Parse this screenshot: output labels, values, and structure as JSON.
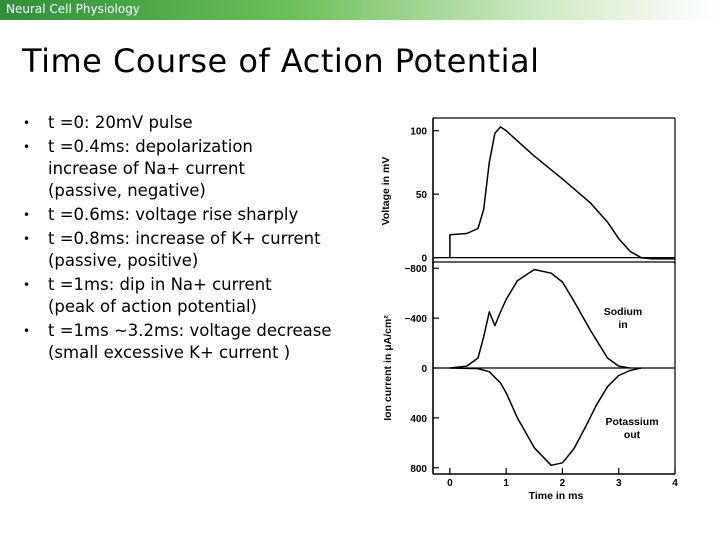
{
  "header": {
    "text": "Neural Cell Physiology",
    "bar_color": "#2f8f3a"
  },
  "slide": {
    "title": "Time Course of Action Potential",
    "bullets": [
      {
        "lines": [
          "t =0: 20mV pulse"
        ]
      },
      {
        "lines": [
          "t =0.4ms: depolarization",
          "increase of Na+  current",
          "(passive, negative)"
        ]
      },
      {
        "lines": [
          "t =0.6ms: voltage rise sharply"
        ]
      },
      {
        "lines": [
          "t =0.8ms: increase of K+ current",
          "(passive, positive)"
        ]
      },
      {
        "lines": [
          "t =1ms: dip in Na+  current",
          "(peak of action potential)"
        ]
      },
      {
        "lines": [
          "t =1ms ~3.2ms: voltage decrease",
          "(small excessive K+ current )"
        ]
      }
    ],
    "bullet_glyph": "•"
  },
  "chart_data": [
    {
      "type": "line",
      "ylabel": "Voltage in mV",
      "yticks": [
        "100",
        "50",
        "0"
      ],
      "ylim": [
        -5,
        110
      ],
      "xlim": [
        -0.3,
        4
      ],
      "series": [
        {
          "x": [
            0.0,
            0.0,
            0.3,
            0.5,
            0.6,
            0.7,
            0.8,
            0.9,
            1.0,
            1.2,
            1.5,
            2.0,
            2.5,
            2.8,
            3.0,
            3.2,
            3.4,
            3.6,
            4.0
          ],
          "values": [
            0,
            18,
            19,
            23,
            38,
            75,
            98,
            103,
            100,
            92,
            80,
            62,
            43,
            28,
            15,
            5,
            0,
            -1,
            -1
          ]
        }
      ]
    },
    {
      "type": "line",
      "ylabel": "Ion current in μA/cm²",
      "yticks": [
        "−800",
        "−400",
        "0",
        "400",
        "800"
      ],
      "ylim": [
        -850,
        850
      ],
      "xlim": [
        -0.3,
        4
      ],
      "xlabel": "Time in ms",
      "xticks": [
        "0",
        "1",
        "2",
        "3",
        "4"
      ],
      "annotations": [
        "Sodium",
        "in",
        "Potassium",
        "out"
      ],
      "series": [
        {
          "name": "Sodium in",
          "x": [
            0.0,
            0.3,
            0.5,
            0.6,
            0.7,
            0.8,
            0.9,
            1.0,
            1.2,
            1.5,
            1.8,
            2.0,
            2.2,
            2.5,
            2.8,
            3.0,
            3.2
          ],
          "values": [
            0,
            -15,
            -80,
            -250,
            -450,
            -340,
            -450,
            -550,
            -700,
            -790,
            -760,
            -690,
            -540,
            -300,
            -80,
            -15,
            0
          ]
        },
        {
          "name": "Potassium out",
          "x": [
            0.0,
            0.5,
            0.7,
            0.9,
            1.0,
            1.2,
            1.5,
            1.8,
            2.0,
            2.2,
            2.4,
            2.6,
            2.8,
            3.0,
            3.2,
            3.4
          ],
          "values": [
            0,
            5,
            30,
            120,
            200,
            400,
            640,
            780,
            760,
            650,
            480,
            300,
            150,
            60,
            20,
            0
          ]
        }
      ]
    }
  ]
}
